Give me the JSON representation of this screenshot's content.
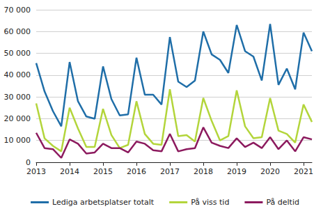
{
  "chart_data": {
    "type": "line",
    "categories": [
      "2013",
      null,
      null,
      null,
      "2014",
      null,
      null,
      null,
      "2015",
      null,
      null,
      null,
      "2016",
      null,
      null,
      null,
      "2017",
      null,
      null,
      null,
      "2018",
      null,
      null,
      null,
      "2019",
      null,
      null,
      null,
      "2020",
      null,
      null,
      null,
      "2021",
      null
    ],
    "series": [
      {
        "name": "Lediga arbetsplatser totalt",
        "color": "#1f6ea8",
        "values": [
          45500,
          32500,
          23500,
          16500,
          46000,
          28000,
          21000,
          20000,
          44000,
          29000,
          21500,
          22000,
          48000,
          31000,
          31000,
          26500,
          57500,
          37000,
          34500,
          37500,
          60000,
          49500,
          47000,
          41000,
          63000,
          51000,
          48500,
          37500,
          63500,
          35500,
          43000,
          33500,
          59500,
          51000
        ]
      },
      {
        "name": "På viss tid",
        "color": "#b3d53b",
        "values": [
          27000,
          11000,
          7500,
          5000,
          25000,
          15500,
          7000,
          7000,
          24500,
          12500,
          6500,
          8000,
          28000,
          13000,
          8500,
          8000,
          33500,
          12000,
          12500,
          9500,
          29500,
          19000,
          10000,
          12000,
          33000,
          16500,
          11000,
          11500,
          29500,
          14500,
          13000,
          9000,
          26500,
          18500
        ]
      },
      {
        "name": "På deltid",
        "color": "#8c1a5e",
        "values": [
          13500,
          6500,
          6000,
          2000,
          10500,
          8500,
          4000,
          4500,
          8500,
          6500,
          6500,
          4500,
          9500,
          8500,
          5500,
          5000,
          13000,
          5000,
          6000,
          6500,
          16000,
          9000,
          7500,
          6500,
          11000,
          7000,
          9000,
          6500,
          11500,
          6000,
          10000,
          5000,
          11500,
          10500
        ]
      }
    ],
    "ylim": [
      0,
      70000
    ],
    "yticks": [
      0,
      {
        "value": 10000,
        "label": "10 000"
      },
      {
        "value": 20000,
        "label": "20 000"
      },
      {
        "value": 30000,
        "label": "30 000"
      },
      {
        "value": 40000,
        "label": "40 000"
      },
      {
        "value": 50000,
        "label": "50 000"
      },
      {
        "value": 60000,
        "label": "60 000"
      },
      {
        "value": 70000,
        "label": "70 000"
      }
    ],
    "grid": true,
    "legend": "bottom"
  }
}
